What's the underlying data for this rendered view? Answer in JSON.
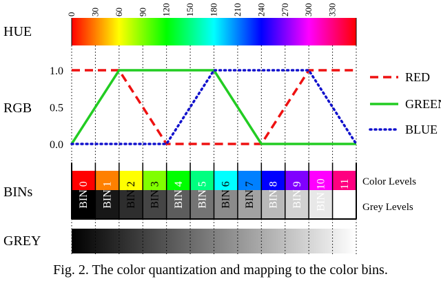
{
  "row_labels": {
    "hue": "HUE",
    "rgb": "RGB",
    "bins": "BINs",
    "grey": "GREY"
  },
  "level_labels": {
    "color": "Color Levels",
    "grey": "Grey Levels"
  },
  "caption": "Fig. 2.  The color quantization and mapping to the color bins.",
  "chart_data": {
    "type": "line",
    "x_ticks": [
      "0",
      "30",
      "60",
      "90",
      "120",
      "150",
      "180",
      "210",
      "240",
      "270",
      "300",
      "330"
    ],
    "xlim": [
      0,
      360
    ],
    "ylim": [
      0,
      1
    ],
    "y_ticks": [
      "0.0",
      "0.5",
      "1.0"
    ],
    "series": [
      {
        "name": "RED",
        "color": "#ee1111",
        "style": "dashed",
        "x": [
          0,
          60,
          120,
          240,
          300,
          360
        ],
        "y": [
          1,
          1,
          0,
          0,
          1,
          1
        ]
      },
      {
        "name": "GREEN",
        "color": "#22cc22",
        "style": "solid",
        "x": [
          0,
          60,
          180,
          240,
          360
        ],
        "y": [
          0,
          1,
          1,
          0,
          0
        ]
      },
      {
        "name": "BLUE",
        "color": "#1111cc",
        "style": "dotted",
        "x": [
          0,
          120,
          180,
          300,
          360
        ],
        "y": [
          0,
          0,
          1,
          1,
          0
        ]
      }
    ],
    "bins": [
      {
        "label": "BIN 0",
        "color": "#ff0000",
        "grey": "#000000",
        "text_color": "#ffffff"
      },
      {
        "label": "BIN 1",
        "color": "#ff8000",
        "grey": "#171717",
        "text_color": "#ffffff"
      },
      {
        "label": "BIN 2",
        "color": "#ffff00",
        "grey": "#2e2e2e",
        "text_color": "#000000"
      },
      {
        "label": "BIN 3",
        "color": "#80ff00",
        "grey": "#454545",
        "text_color": "#000000"
      },
      {
        "label": "BIN 4",
        "color": "#00ff00",
        "grey": "#5d5d5d",
        "text_color": "#ffffff"
      },
      {
        "label": "BIN 5",
        "color": "#00ff80",
        "grey": "#747474",
        "text_color": "#ffffff"
      },
      {
        "label": "BIN 6",
        "color": "#00ffff",
        "grey": "#8b8b8b",
        "text_color": "#000000"
      },
      {
        "label": "BIN 7",
        "color": "#0080ff",
        "grey": "#a2a2a2",
        "text_color": "#000000"
      },
      {
        "label": "BIN 8",
        "color": "#0000ff",
        "grey": "#b9b9b9",
        "text_color": "#ffffff"
      },
      {
        "label": "BIN 9",
        "color": "#8000ff",
        "grey": "#d1d1d1",
        "text_color": "#ffffff"
      },
      {
        "label": "BIN 10",
        "color": "#ff00ff",
        "grey": "#e8e8e8",
        "text_color": "#ffffff"
      },
      {
        "label": "BIN 11",
        "color": "#ff0080",
        "grey": "#ffffff",
        "text_color": "#ffffff"
      }
    ]
  }
}
